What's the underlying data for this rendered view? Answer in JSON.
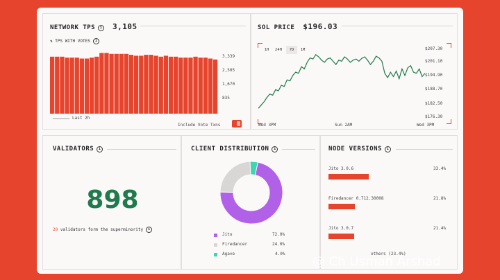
{
  "colors": {
    "accent": "#e6442c",
    "green": "#1f7a4c",
    "purple": "#b061e8",
    "grey": "#d9d6d6",
    "teal": "#3dd6b0"
  },
  "tps": {
    "title": "NETWORK TPS",
    "value": "3,105",
    "subtitle": "TPS WITH VOTES",
    "ticks": [
      "3,339",
      "2,505",
      "1,670",
      "835"
    ],
    "legend": "Last 2h",
    "toggle_label": "Include Vote Txns",
    "chart_data": {
      "type": "bar",
      "ylim": [
        0,
        3339
      ],
      "values": [
        3050,
        3050,
        3050,
        3000,
        3000,
        3000,
        2950,
        2950,
        3000,
        3050,
        3250,
        3250,
        3200,
        3200,
        3200,
        3200,
        3150,
        3100,
        3100,
        3150,
        3150,
        3100,
        3050,
        3100,
        3050,
        3050,
        3000,
        3000,
        3000,
        3050,
        3000,
        3000,
        2950,
        2900
      ]
    }
  },
  "price": {
    "title": "SOL PRICE",
    "value": "$196.03",
    "timeframes": [
      "1H",
      "24H",
      "7D",
      "1M"
    ],
    "active_timeframe": "7D",
    "ticks": [
      "$207.30",
      "$201.10",
      "$194.90",
      "$188.70",
      "$182.50",
      "$176.30"
    ],
    "xticks": [
      "Wed 3PM",
      "Sun 2AM",
      "Wed 3PM"
    ],
    "chart_data": {
      "type": "line",
      "ylim": [
        176.3,
        207.3
      ],
      "values": [
        180,
        181.5,
        183,
        185,
        186.5,
        186,
        188.5,
        188,
        190.5,
        190,
        193,
        192.5,
        195,
        196.5,
        196,
        199,
        198,
        201,
        203,
        202.5,
        204.5,
        203.5,
        202,
        201,
        202.5,
        203,
        201.5,
        200,
        202,
        201.5,
        203.5,
        202.5,
        201,
        202,
        202.5,
        201.5,
        202.8,
        203.5,
        202,
        200,
        201.5,
        203.8,
        203,
        201.5,
        196,
        194,
        196.5,
        194.5,
        197,
        193.5,
        198,
        195,
        198.5,
        199.5,
        196.5,
        196,
        198,
        194.5,
        196
      ]
    }
  },
  "validators": {
    "title": "VALIDATORS",
    "count": "898",
    "note_number": "20",
    "note_text": "validators form the superminority"
  },
  "clients": {
    "title": "CLIENT DISTRIBUTION",
    "items": [
      {
        "name": "Jito",
        "pct": "72.0%",
        "value": 72.0,
        "color": "#b061e8"
      },
      {
        "name": "Firedancer",
        "pct": "24.0%",
        "value": 24.0,
        "color": "#d9d6d6"
      },
      {
        "name": "Agave",
        "pct": "4.0%",
        "value": 4.0,
        "color": "#3dd6b0"
      }
    ]
  },
  "versions": {
    "title": "NODE VERSIONS",
    "items": [
      {
        "name": "Jito 3.0.6",
        "pct": "33.4%",
        "value": 33.4
      },
      {
        "name": "Firedancer 0.712.30008",
        "pct": "21.8%",
        "value": 21.8
      },
      {
        "name": "Jito 3.0.7",
        "pct": "21.4%",
        "value": 21.4
      }
    ],
    "others": "others (23.4%)"
  },
  "watermark": "@ Ch Usman Arshad"
}
